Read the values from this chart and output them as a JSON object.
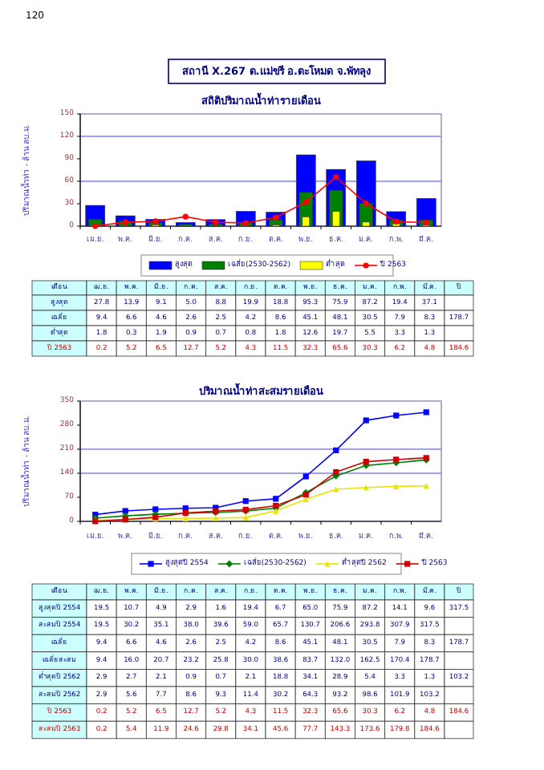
{
  "chart_data": [
    {
      "type": "bar",
      "title": "สถานี X.267 ต.แม่ขรี อ.ตะโหมด จ.พัทลุง",
      "subtitle": "สถิติปริมาณน้ำท่ารายเดือน",
      "ylabel": "ปริมาณน้ำท่า - ล้าน ลบ.ม.",
      "categories": [
        "เม.ย.",
        "พ.ค.",
        "มิ.ย.",
        "ก.ค.",
        "ส.ค.",
        "ก.ย.",
        "ต.ค.",
        "พ.ย.",
        "ธ.ค.",
        "ม.ค.",
        "ก.พ.",
        "มี.ค."
      ],
      "ylim": [
        0,
        150
      ],
      "yticks": [
        0,
        30,
        60,
        90,
        120,
        150
      ],
      "ref_lines": [
        {
          "axis": "y",
          "value": 60,
          "color": "#8080ff"
        },
        {
          "axis": "y",
          "value": 120,
          "color": "#8080ff"
        }
      ],
      "legend": "bottom",
      "annotations": [
        "120",
        "เดือน",
        "ปี",
        "สูงสุด",
        "เฉลี่ย",
        "178.7",
        "ต่ำสุด",
        "ปี 2563",
        "184.6"
      ],
      "series": [
        {
          "name": "สูงสุด",
          "color": "#0000ff",
          "values": [
            27.8,
            13.9,
            9.1,
            5.0,
            8.8,
            19.9,
            18.8,
            95.3,
            75.9,
            87.2,
            19.4,
            37.1
          ],
          "value_labels": [
            "27.8",
            "13.9",
            "9.1",
            "5.0",
            "8.8",
            "19.9",
            "18.8",
            "95.3",
            "75.9",
            "87.2",
            "19.4",
            "37.1"
          ]
        },
        {
          "name": "เฉลี่ย(2530-2562)",
          "color": "#008000",
          "values": [
            9.4,
            6.6,
            4.6,
            2.6,
            2.5,
            4.2,
            8.6,
            45.1,
            48.1,
            30.5,
            7.9,
            8.3
          ],
          "value_labels": [
            "9.4",
            "6.6",
            "4.6",
            "2.6",
            "2.5",
            "4.2",
            "8.6",
            "45.1",
            "48.1",
            "30.5",
            "7.9",
            "8.3"
          ]
        },
        {
          "name": "ต่ำสุด",
          "color": "#ffff00",
          "values": [
            1.8,
            0.3,
            1.9,
            0.9,
            0.7,
            0.8,
            1.8,
            12.6,
            19.7,
            5.5,
            3.3,
            1.3
          ],
          "value_labels": [
            "1.8",
            "0.3",
            "1.9",
            "0.9",
            "0.7",
            "0.8",
            "1.8",
            "12.6",
            "19.7",
            "5.5",
            "3.3",
            "1.3"
          ]
        },
        {
          "name": "ปี 2563",
          "type": "line",
          "color": "#ff0000",
          "marker": "circle",
          "values": [
            0.2,
            5.2,
            6.5,
            12.7,
            5.2,
            4.3,
            11.5,
            32.3,
            65.6,
            30.3,
            6.2,
            4.8
          ],
          "value_labels": [
            "0.2",
            "5.2",
            "6.5",
            "12.7",
            "5.2",
            "4.3",
            "11.5",
            "32.3",
            "65.6",
            "30.3",
            "6.2",
            "4.8"
          ]
        }
      ]
    },
    {
      "type": "line",
      "title": "ปริมาณน้ำท่าสะสมรายเดือน",
      "ylabel": "ปริมาณน้ำท่า - ล้าน ลบ.ม.",
      "categories": [
        "เม.ย.",
        "พ.ค.",
        "มิ.ย.",
        "ก.ค.",
        "ส.ค.",
        "ก.ย.",
        "ต.ค.",
        "พ.ย.",
        "ธ.ค.",
        "ม.ค.",
        "ก.พ.",
        "มี.ค."
      ],
      "ylim": [
        0,
        350
      ],
      "yticks": [
        0,
        70,
        140,
        210,
        280,
        350
      ],
      "ref_lines": [
        {
          "axis": "y",
          "value": 140,
          "color": "#8080ff"
        },
        {
          "axis": "y",
          "value": 210,
          "color": "#8080ff"
        }
      ],
      "legend": "bottom",
      "annotations": [
        "เดือน",
        "ปี",
        "สูงสุดปี 2554",
        "19.5",
        "10.7",
        "4.9",
        "2.9",
        "1.6",
        "19.4",
        "6.7",
        "65.0",
        "75.9",
        "87.2",
        "14.1",
        "9.6",
        "317.5",
        "สะสมปี 2554",
        "เฉลี่ย",
        "9.4",
        "6.6",
        "4.6",
        "2.6",
        "2.5",
        "4.2",
        "8.6",
        "45.1",
        "48.1",
        "30.5",
        "7.9",
        "8.3",
        "178.7",
        "เฉลี่ยสะสม",
        "ต่ำสุดปี 2562",
        "2.9",
        "2.7",
        "2.1",
        "0.9",
        "0.7",
        "2.1",
        "18.8",
        "34.1",
        "28.9",
        "5.4",
        "3.3",
        "1.3",
        "103.2",
        "สะสมปี 2562",
        "ปี 2563",
        "0.2",
        "5.2",
        "6.5",
        "12.7",
        "5.2",
        "4.3",
        "11.5",
        "32.3",
        "65.6",
        "30.3",
        "6.2",
        "4.8",
        "184.6",
        "สะสมปี 2563"
      ],
      "series": [
        {
          "name": "สูงสุดปี 2554",
          "color": "#0000ff",
          "marker": "square",
          "values": [
            19.5,
            30.2,
            35.1,
            38.0,
            39.6,
            59.0,
            65.7,
            130.7,
            206.6,
            293.8,
            307.9,
            317.5
          ],
          "value_labels": [
            "19.5",
            "30.2",
            "35.1",
            "38.0",
            "39.6",
            "59.0",
            "65.7",
            "130.7",
            "206.6",
            "293.8",
            "307.9",
            "317.5"
          ]
        },
        {
          "name": "เฉลี่ย(2530-2562)",
          "color": "#008000",
          "marker": "diamond",
          "values": [
            9.4,
            16.0,
            20.7,
            23.2,
            25.8,
            30.0,
            38.6,
            83.7,
            132.0,
            162.5,
            170.4,
            178.7
          ],
          "value_labels": [
            "9.4",
            "16.0",
            "20.7",
            "23.2",
            "25.8",
            "30.0",
            "38.6",
            "83.7",
            "132.0",
            "162.5",
            "170.4",
            "178.7"
          ]
        },
        {
          "name": "ต่ำสุดปี 2562",
          "color": "#e6e600",
          "marker": "triangle",
          "values": [
            2.9,
            5.6,
            7.7,
            8.6,
            9.3,
            11.4,
            30.2,
            64.3,
            93.2,
            98.6,
            101.9,
            103.2
          ],
          "value_labels": [
            "2.9",
            "5.6",
            "7.7",
            "8.6",
            "9.3",
            "11.4",
            "30.2",
            "64.3",
            "93.2",
            "98.6",
            "101.9",
            "103.2"
          ]
        },
        {
          "name": "ปี 2563",
          "color": "#cc0000",
          "marker": "square",
          "values": [
            0.2,
            5.4,
            11.9,
            24.6,
            29.8,
            34.1,
            45.6,
            77.7,
            143.3,
            173.6,
            179.8,
            184.6
          ],
          "value_labels": [
            "0.2",
            "5.4",
            "11.9",
            "24.6",
            "29.8",
            "34.1",
            "45.6",
            "77.7",
            "143.3",
            "173.6",
            "179.8",
            "184.6"
          ]
        }
      ]
    }
  ]
}
